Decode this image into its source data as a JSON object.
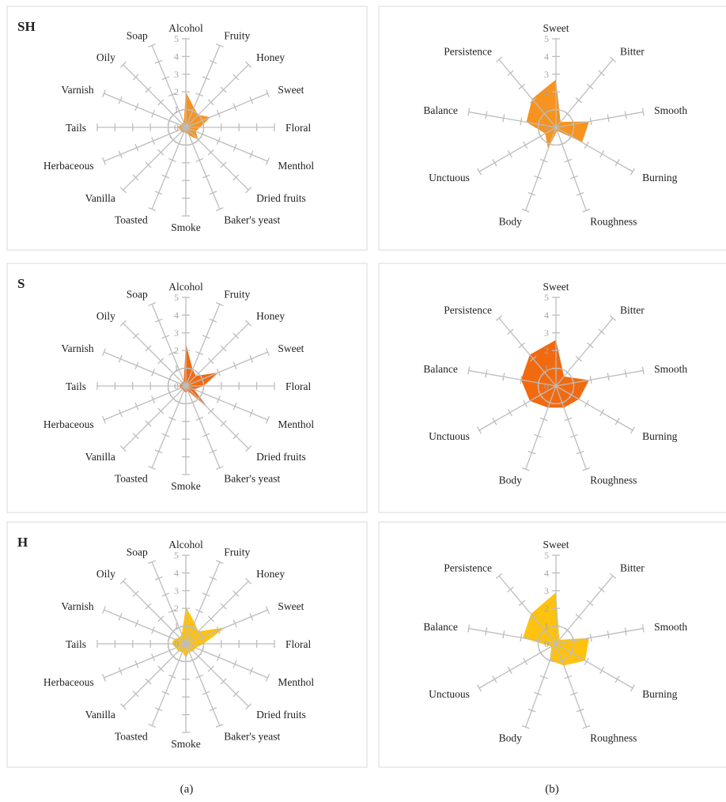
{
  "captions": {
    "a": "(a)",
    "b": "(b)"
  },
  "colors": {
    "SH": "#f7931e",
    "S": "#f26a10",
    "H": "#ffc20e",
    "axis": "#bdbdbd",
    "text": "#222222",
    "tick_text": "#a6a6a6",
    "border": "#d9d9d9"
  },
  "chart_data": [
    {
      "type": "radar",
      "panel": "a",
      "title": "SH",
      "axes": [
        "Alcohol",
        "Fruity",
        "Honey",
        "Sweet",
        "Floral",
        "Menthol",
        "Dried fruits",
        "Baker's yeast",
        "Smoke",
        "Toasted",
        "Vanilla",
        "Herbaceous",
        "Tails",
        "Varnish",
        "Oily",
        "Soap"
      ],
      "scale": [
        0,
        1,
        2,
        3,
        4,
        5
      ],
      "rlim": [
        0,
        5
      ],
      "values": [
        2.0,
        1.2,
        1.0,
        1.5,
        0.8,
        0.6,
        1.0,
        0.5,
        0.3,
        0.3,
        0.4,
        0.3,
        0.5,
        0.3,
        0.3,
        0.3
      ],
      "color": "#f7931e"
    },
    {
      "type": "radar",
      "panel": "b",
      "title": "",
      "axes": [
        "Sweet",
        "Bitter",
        "Smooth",
        "Burning",
        "Roughness",
        "Body",
        "Unctuous",
        "Balance",
        "Persistence"
      ],
      "scale": [
        0,
        1,
        2,
        3,
        4,
        5
      ],
      "rlim": [
        0,
        5
      ],
      "values": [
        2.7,
        0.4,
        1.9,
        1.7,
        0.2,
        1.3,
        0.7,
        1.7,
        2.1
      ],
      "color": "#f7931e"
    },
    {
      "type": "radar",
      "panel": "a",
      "title": "S",
      "axes": [
        "Alcohol",
        "Fruity",
        "Honey",
        "Sweet",
        "Floral",
        "Menthol",
        "Dried fruits",
        "Baker's yeast",
        "Smoke",
        "Toasted",
        "Vanilla",
        "Herbaceous",
        "Tails",
        "Varnish",
        "Oily",
        "Soap"
      ],
      "scale": [
        0,
        1,
        2,
        3,
        4,
        5
      ],
      "rlim": [
        0,
        5
      ],
      "values": [
        2.4,
        1.0,
        0.8,
        2.0,
        1.0,
        0.5,
        1.8,
        0.3,
        0.4,
        0.3,
        0.3,
        0.3,
        0.4,
        0.3,
        0.3,
        0.3
      ],
      "color": "#f26a10"
    },
    {
      "type": "radar",
      "panel": "b",
      "title": "",
      "axes": [
        "Sweet",
        "Bitter",
        "Smooth",
        "Burning",
        "Roughness",
        "Body",
        "Unctuous",
        "Balance",
        "Persistence"
      ],
      "scale": [
        0,
        1,
        2,
        3,
        4,
        5
      ],
      "rlim": [
        0,
        5
      ],
      "values": [
        2.6,
        0.7,
        1.9,
        1.5,
        1.3,
        1.3,
        1.7,
        2.0,
        2.3
      ],
      "color": "#f26a10"
    },
    {
      "type": "radar",
      "panel": "a",
      "title": "H",
      "axes": [
        "Alcohol",
        "Fruity",
        "Honey",
        "Sweet",
        "Floral",
        "Menthol",
        "Dried fruits",
        "Baker's yeast",
        "Smoke",
        "Toasted",
        "Vanilla",
        "Herbaceous",
        "Tails",
        "Varnish",
        "Oily",
        "Soap"
      ],
      "scale": [
        0,
        1,
        2,
        3,
        4,
        5
      ],
      "rlim": [
        0,
        5
      ],
      "values": [
        2.1,
        1.3,
        1.0,
        2.4,
        1.0,
        0.6,
        0.6,
        0.5,
        0.8,
        0.5,
        0.6,
        0.6,
        0.8,
        0.7,
        0.5,
        0.6
      ],
      "color": "#ffc20e"
    },
    {
      "type": "radar",
      "panel": "b",
      "title": "",
      "axes": [
        "Sweet",
        "Bitter",
        "Smooth",
        "Burning",
        "Roughness",
        "Body",
        "Unctuous",
        "Balance",
        "Persistence"
      ],
      "scale": [
        0,
        1,
        2,
        3,
        4,
        5
      ],
      "rlim": [
        0,
        5
      ],
      "values": [
        2.9,
        0.3,
        1.9,
        1.9,
        1.3,
        1.0,
        0.3,
        1.9,
        2.2
      ],
      "color": "#ffc20e"
    }
  ]
}
